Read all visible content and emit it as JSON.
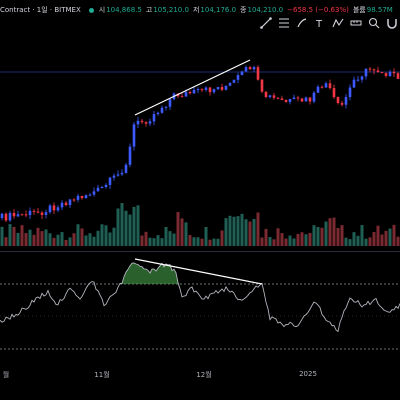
{
  "header": {
    "symbol": "Contract · 1일 · BITMEX",
    "open_label": "시",
    "open_value": "104,868.5",
    "high_label": "고",
    "high_value": "105,210.0",
    "low_label": "저",
    "low_value": "104,176.0",
    "close_label": "종",
    "close_value": "104,210.0",
    "change": "−658.5 (−0.63%)",
    "volume_label": "볼륨",
    "volume_value": "98.57M",
    "status_color": "#22ab94"
  },
  "toolbar": {
    "icons": [
      "trend-line-icon",
      "fib-retracement-icon",
      "brush-icon",
      "text-icon",
      "pattern-icon",
      "measure-icon",
      "zoom-icon",
      "magnet-icon"
    ]
  },
  "x_axis": {
    "labels": [
      "월",
      "11월",
      "12월",
      "2025"
    ]
  },
  "colors": {
    "up": "#22ab94",
    "down": "#f23645",
    "candle_up": "#3d5afe",
    "candle_down": "#f23645",
    "trendline": "#ffffff",
    "rsi_line": "#b2b5be",
    "rsi_fill": "#4caf50"
  }
}
